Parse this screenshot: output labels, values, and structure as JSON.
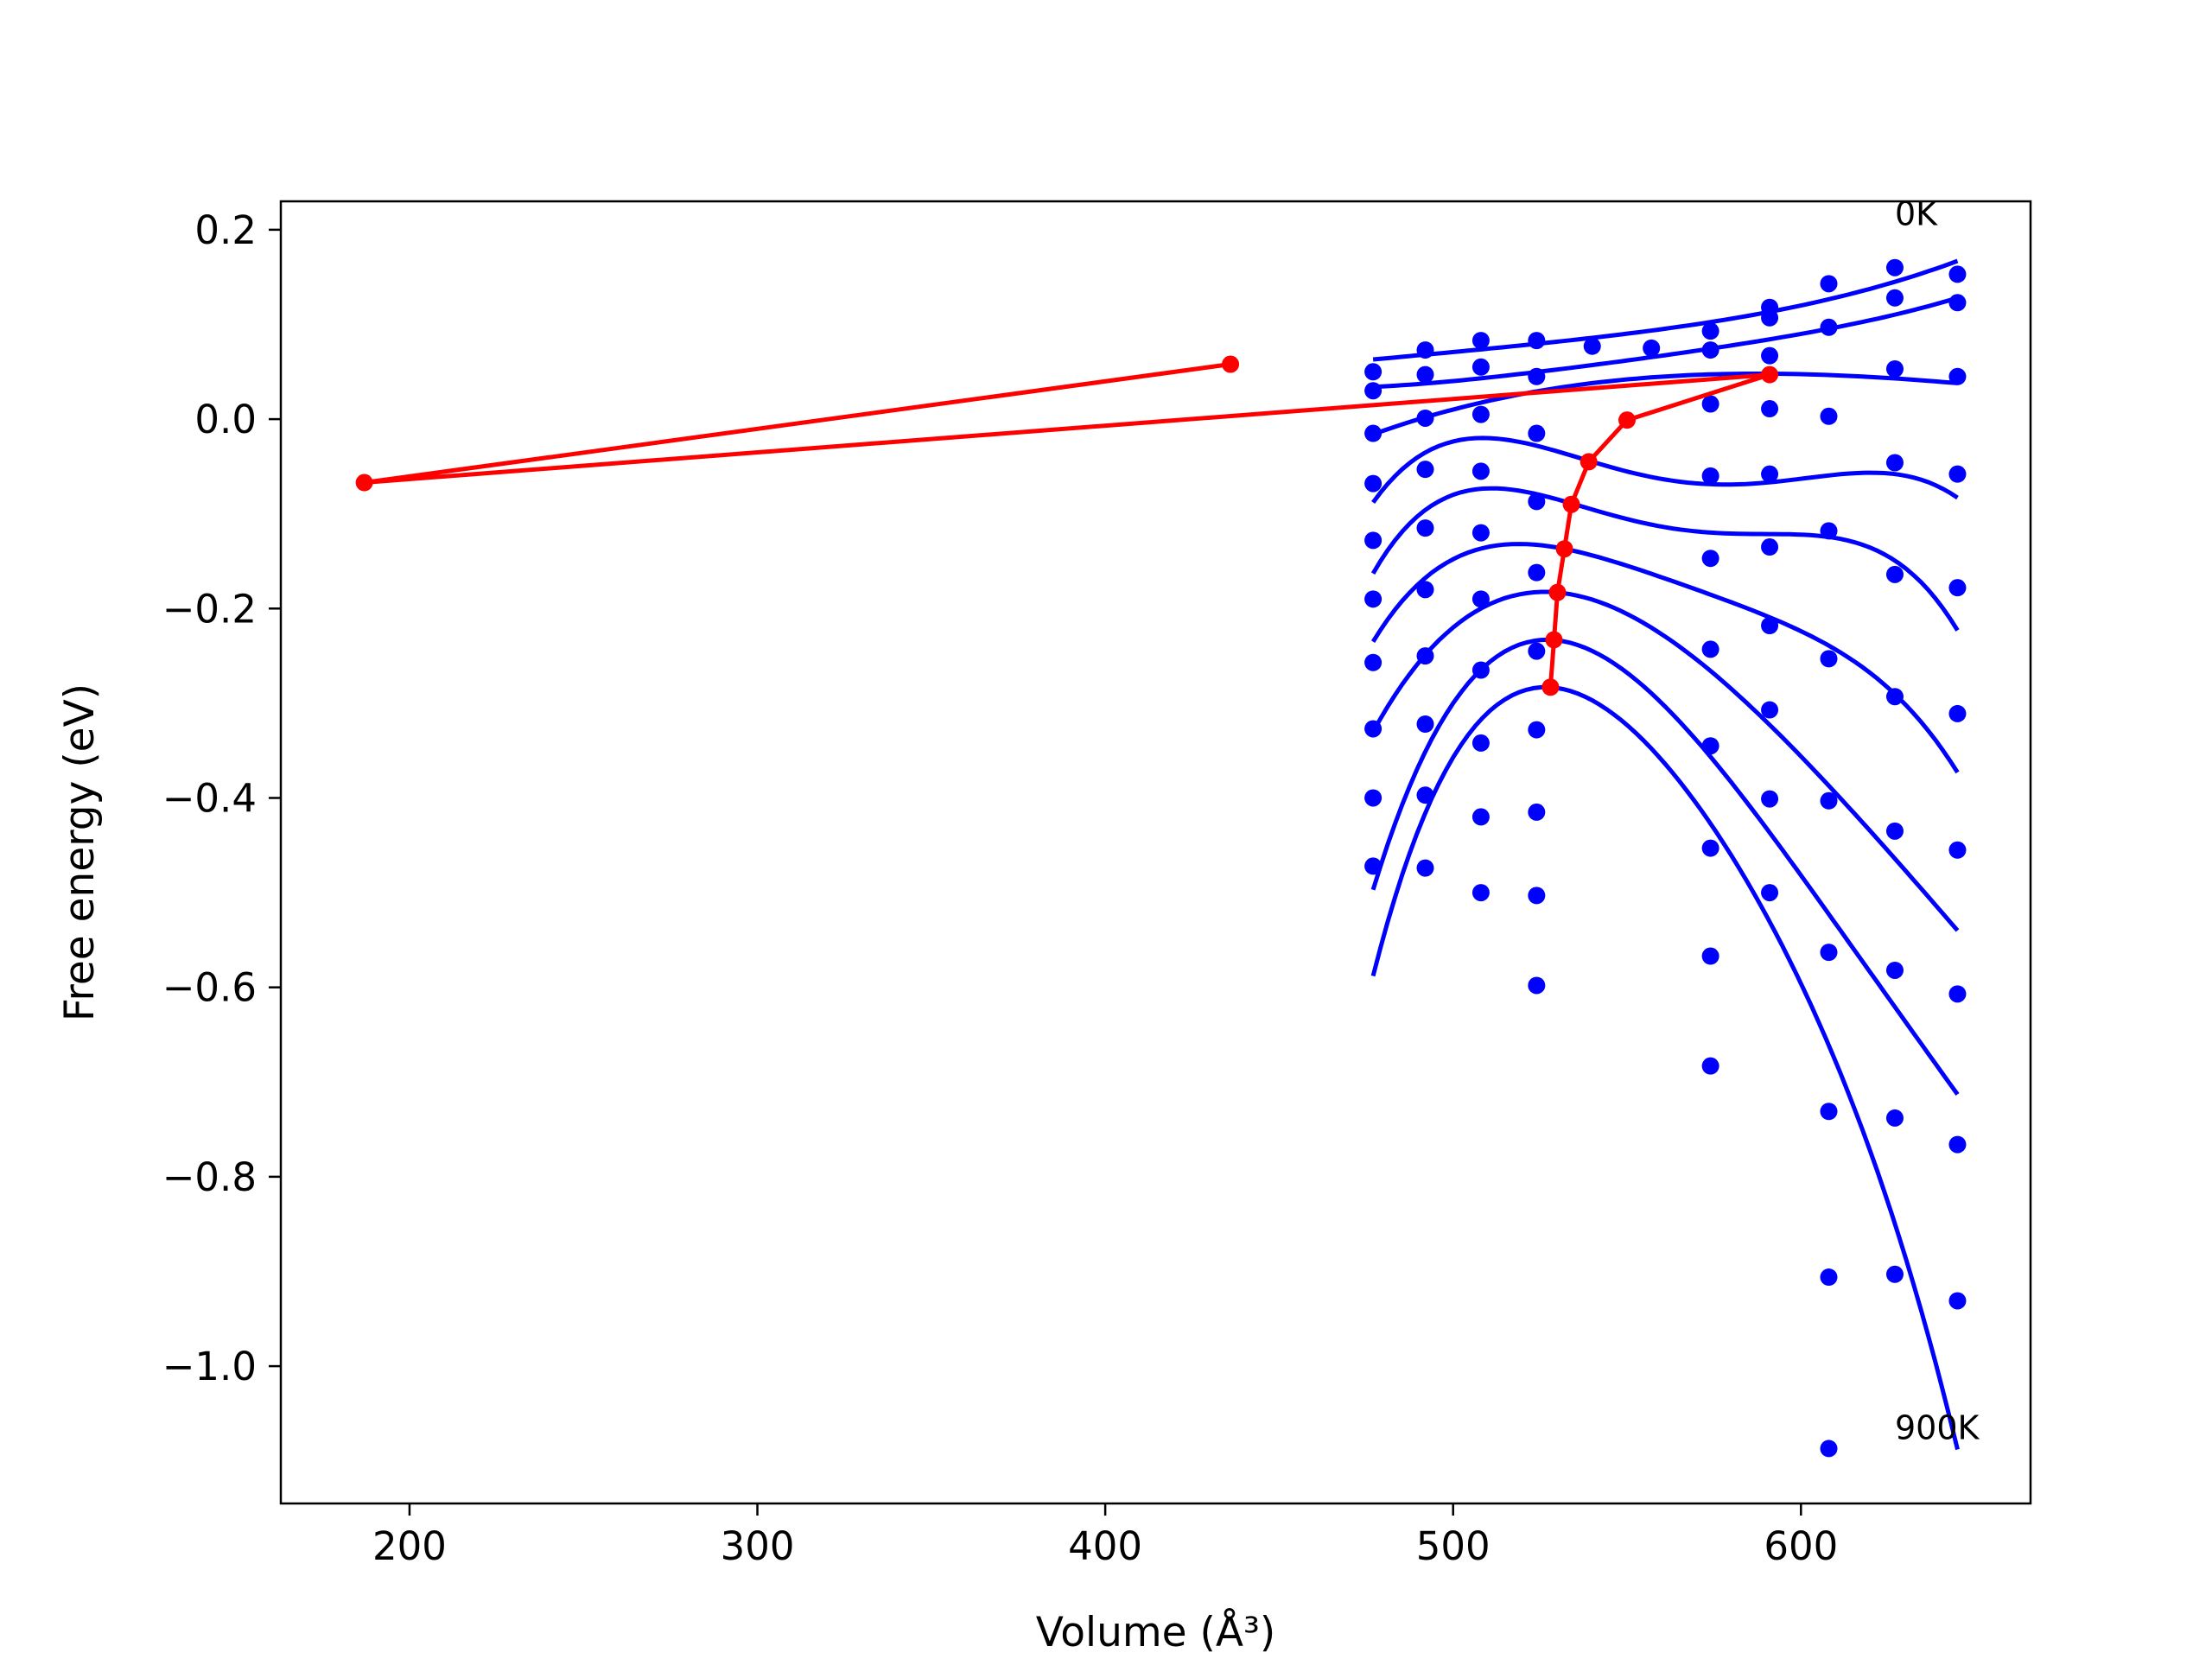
{
  "chart_data": {
    "type": "scatter",
    "xlabel": "Volume (Å³)",
    "ylabel": "Free energy (eV)",
    "xlim": [
      163,
      666
    ],
    "ylim": [
      -1.145,
      0.23
    ],
    "xticks": [
      200,
      300,
      400,
      500,
      600
    ],
    "xtick_labels": [
      "200",
      "300",
      "400",
      "500",
      "600"
    ],
    "yticks": [
      0.2,
      0.0,
      -0.2,
      -0.4,
      -0.6,
      -0.8,
      -1.0
    ],
    "ytick_labels": [
      "0.2",
      "0.0",
      "−0.2",
      "−0.4",
      "−0.6",
      "−0.8",
      "−1.0"
    ],
    "grid": false,
    "colors": {
      "points": "#0000ff",
      "curves": "#0000ff",
      "minima": "#ff0000"
    },
    "annotations": [
      {
        "text": "0K",
        "x": 627,
        "y": 0.205
      },
      {
        "text": "900K",
        "x": 627,
        "y": -1.077
      }
    ],
    "temperature_curves": [
      {
        "x": [
          477,
          520,
          560,
          600,
          645
        ],
        "y": [
          0.063,
          0.078,
          0.095,
          0.12,
          0.167
        ]
      },
      {
        "x": [
          477,
          520,
          560,
          600,
          645
        ],
        "y": [
          0.034,
          0.048,
          0.067,
          0.09,
          0.128
        ]
      },
      {
        "x": [
          477,
          540,
          590,
          645
        ],
        "y": [
          -0.016,
          0.038,
          0.048,
          0.038
        ]
      },
      {
        "x": [
          477,
          510,
          540,
          580,
          645
        ],
        "y": [
          -0.088,
          -0.02,
          -0.045,
          -0.069,
          -0.083
        ]
      },
      {
        "x": [
          477,
          505,
          535,
          575,
          645
        ],
        "y": [
          -0.163,
          -0.075,
          -0.09,
          -0.12,
          -0.223
        ]
      },
      {
        "x": [
          477,
          505,
          532,
          570,
          645
        ],
        "y": [
          -0.235,
          -0.14,
          -0.137,
          -0.18,
          -0.373
        ]
      },
      {
        "x": [
          477,
          500,
          530,
          565,
          645
        ],
        "y": [
          -0.33,
          -0.22,
          -0.183,
          -0.24,
          -0.54
        ]
      },
      {
        "x": [
          477,
          500,
          528,
          560,
          645
        ],
        "y": [
          -0.497,
          -0.3,
          -0.233,
          -0.3,
          -0.713
        ]
      },
      {
        "x": [
          477,
          498,
          527,
          560,
          645
        ],
        "y": [
          -0.588,
          -0.37,
          -0.283,
          -0.36,
          -1.088
        ]
      }
    ],
    "points": [
      {
        "x": 477,
        "y": [
          0.05,
          0.03,
          -0.015,
          -0.068,
          -0.128,
          -0.19,
          -0.257,
          -0.327,
          -0.4,
          -0.472
        ]
      },
      {
        "x": 492,
        "y": [
          0.073,
          0.047,
          0.001,
          -0.053,
          -0.115,
          -0.18,
          -0.25,
          -0.322,
          -0.397,
          -0.474
        ]
      },
      {
        "x": 508,
        "y": [
          0.083,
          0.055,
          0.005,
          -0.055,
          -0.12,
          -0.19,
          -0.265,
          -0.342,
          -0.42,
          -0.5
        ]
      },
      {
        "x": 524,
        "y": [
          0.083,
          0.045,
          -0.015,
          -0.087,
          -0.162,
          -0.245,
          -0.328,
          -0.415,
          -0.503,
          -0.598
        ]
      },
      {
        "x": 574,
        "y": [
          0.093,
          0.073,
          0.016,
          -0.06,
          -0.147,
          -0.243,
          -0.345,
          -0.453,
          -0.567,
          -0.683
        ]
      },
      {
        "x": 591,
        "y": [
          0.118,
          0.107,
          0.067,
          0.011,
          -0.058,
          -0.135,
          -0.218,
          -0.307,
          -0.401,
          -0.5
        ]
      },
      {
        "x": 608,
        "y": [
          0.143,
          0.097,
          0.003,
          -0.118,
          -0.253,
          -0.403,
          -0.563,
          -0.731,
          -0.906,
          -1.087
        ]
      },
      {
        "x": 627,
        "y": [
          0.16,
          0.128,
          0.053,
          -0.046,
          -0.164,
          -0.293,
          -0.435,
          -0.582,
          -0.738,
          -0.903
        ]
      },
      {
        "x": 645,
        "y": [
          0.153,
          0.123,
          0.045,
          -0.058,
          -0.178,
          -0.311,
          -0.455,
          -0.607,
          -0.766,
          -0.931
        ]
      }
    ],
    "extra_points": [
      {
        "x": 540,
        "y": 0.077
      },
      {
        "x": 557,
        "y": 0.075
      }
    ],
    "minima_curve": {
      "x": [
        436,
        187,
        591,
        550,
        539,
        534,
        532,
        530,
        529,
        528
      ],
      "y": [
        0.058,
        -0.067,
        0.047,
        -0.001,
        -0.045,
        -0.09,
        -0.137,
        -0.183,
        -0.233,
        -0.283
      ]
    }
  }
}
